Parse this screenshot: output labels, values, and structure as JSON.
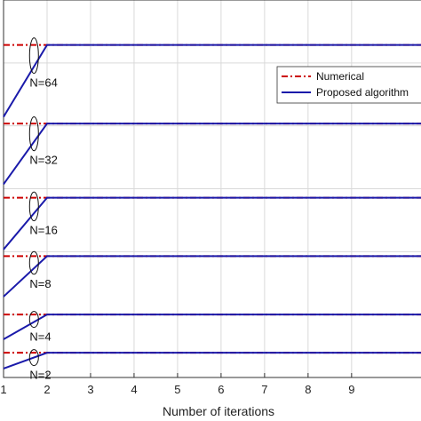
{
  "chart_data": {
    "type": "line",
    "xlabel": "Number of iterations",
    "ylabel": "",
    "xlim": [
      1,
      10.8
    ],
    "xticks": [
      1,
      2,
      3,
      4,
      5,
      6,
      7,
      8,
      9
    ],
    "grid": true,
    "legend": {
      "placement": "top-right",
      "entries": [
        "Numerical",
        "Proposed algorithm"
      ]
    },
    "colors": {
      "numerical": "#cc0000",
      "proposed": "#1a1aaa",
      "grid": "#d9d9d9"
    },
    "groups": [
      {
        "label": "N=64",
        "numerical": 0.9,
        "proposed_x": [
          1,
          2,
          10.8
        ],
        "proposed_y": [
          0.74,
          0.9,
          0.9
        ]
      },
      {
        "label": "N=32",
        "numerical": 0.725,
        "proposed_x": [
          1,
          2,
          10.8
        ],
        "proposed_y": [
          0.59,
          0.725,
          0.725
        ]
      },
      {
        "label": "N=16",
        "numerical": 0.56,
        "proposed_x": [
          1,
          2,
          10.8
        ],
        "proposed_y": [
          0.445,
          0.56,
          0.56
        ]
      },
      {
        "label": "N=8",
        "numerical": 0.43,
        "proposed_x": [
          1,
          2,
          10.8
        ],
        "proposed_y": [
          0.34,
          0.43,
          0.43
        ]
      },
      {
        "label": "N=4",
        "numerical": 0.3,
        "proposed_x": [
          1,
          2,
          10.8
        ],
        "proposed_y": [
          0.245,
          0.3,
          0.3
        ]
      },
      {
        "label": "N=2",
        "numerical": 0.215,
        "proposed_x": [
          1,
          2,
          10.8
        ],
        "proposed_y": [
          0.18,
          0.215,
          0.215
        ]
      }
    ]
  }
}
